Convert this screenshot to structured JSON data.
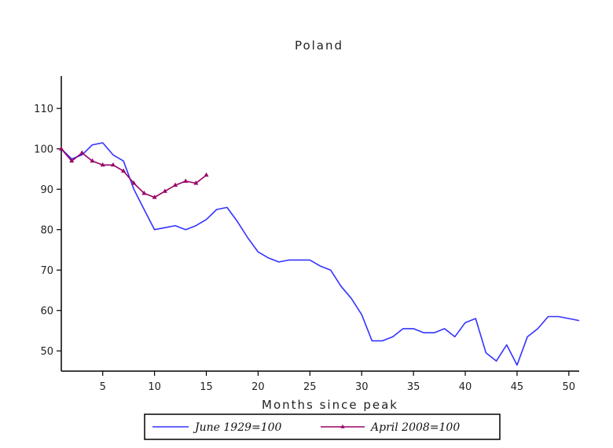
{
  "chart_data": {
    "type": "line",
    "title": "Poland",
    "xlabel": "Months since peak",
    "ylabel": "",
    "xlim": [
      1,
      51
    ],
    "ylim": [
      45,
      118
    ],
    "x_ticks": [
      5,
      10,
      15,
      20,
      25,
      30,
      35,
      40,
      45,
      50
    ],
    "y_ticks": [
      50,
      60,
      70,
      80,
      90,
      100,
      110
    ],
    "grid": false,
    "legend_position": "bottom",
    "series": [
      {
        "name": "June 1929=100",
        "color": "#3333ff",
        "marker": "none",
        "x": [
          1,
          2,
          3,
          4,
          5,
          6,
          7,
          8,
          9,
          10,
          11,
          12,
          13,
          14,
          15,
          16,
          17,
          18,
          19,
          20,
          21,
          22,
          23,
          24,
          25,
          26,
          27,
          28,
          29,
          30,
          31,
          32,
          33,
          34,
          35,
          36,
          37,
          38,
          39,
          40,
          41,
          42,
          43,
          44,
          45,
          46,
          47,
          48,
          49,
          50,
          51
        ],
        "values": [
          100,
          97.5,
          98.5,
          101,
          101.5,
          98.5,
          97,
          90,
          85,
          80,
          80.5,
          81,
          80,
          81,
          82.5,
          85,
          85.5,
          82,
          78,
          74.5,
          73,
          72,
          72.5,
          72.5,
          72.5,
          71,
          70,
          66,
          63,
          59,
          52.5,
          52.5,
          53.5,
          55.5,
          55.5,
          54.5,
          54.5,
          55.5,
          53.5,
          57,
          58,
          49.5,
          47.5,
          51.5,
          46.5,
          53.5,
          55.5,
          58.5,
          58.5,
          58,
          57.5
        ]
      },
      {
        "name": "April 2008=100",
        "color": "#990066",
        "marker": "triangle",
        "x": [
          1,
          2,
          3,
          4,
          5,
          6,
          7,
          8,
          9,
          10,
          11,
          12,
          13,
          14,
          15
        ],
        "values": [
          100,
          97,
          99,
          97,
          96,
          96,
          94.5,
          91.5,
          89,
          88,
          89.5,
          91,
          92,
          91.5,
          93.5
        ]
      }
    ]
  }
}
